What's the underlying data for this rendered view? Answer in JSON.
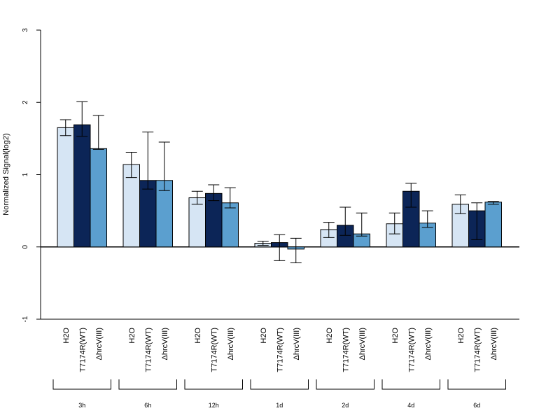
{
  "chart_data": {
    "type": "bar",
    "title": "",
    "xlabel": "",
    "ylabel": "Normalized Signal(log2)",
    "ylim": [
      -1,
      3
    ],
    "yticks": [
      "-1",
      "0",
      "1",
      "2",
      "3"
    ],
    "grid": false,
    "categories": [
      "3h",
      "6h",
      "12h",
      "1d",
      "2d",
      "4d",
      "6d"
    ],
    "series": [
      {
        "name": "H2O",
        "color": "#d6e5f4",
        "values": [
          1.65,
          1.14,
          0.68,
          0.05,
          0.24,
          0.32,
          0.59
        ],
        "err_low": [
          1.54,
          0.96,
          0.59,
          0.02,
          0.13,
          0.18,
          0.46
        ],
        "err_high": [
          1.76,
          1.31,
          0.77,
          0.08,
          0.34,
          0.47,
          0.72
        ]
      },
      {
        "name": "T7174R(WT)",
        "color": "#0c2557",
        "values": [
          1.69,
          0.92,
          0.74,
          0.06,
          0.3,
          0.77,
          0.5
        ],
        "err_low": [
          1.53,
          0.8,
          0.64,
          -0.19,
          0.16,
          0.55,
          0.1
        ],
        "err_high": [
          2.01,
          1.59,
          0.86,
          0.17,
          0.55,
          0.88,
          0.61
        ]
      },
      {
        "name": "ΔhrcV(III)",
        "color": "#5b9fcf",
        "values": [
          1.36,
          0.92,
          0.61,
          -0.03,
          0.18,
          0.33,
          0.62
        ],
        "err_low": [
          1.35,
          0.78,
          0.54,
          -0.22,
          0.15,
          0.27,
          0.59
        ],
        "err_high": [
          1.82,
          1.45,
          0.82,
          0.12,
          0.47,
          0.5,
          0.63
        ]
      }
    ]
  }
}
